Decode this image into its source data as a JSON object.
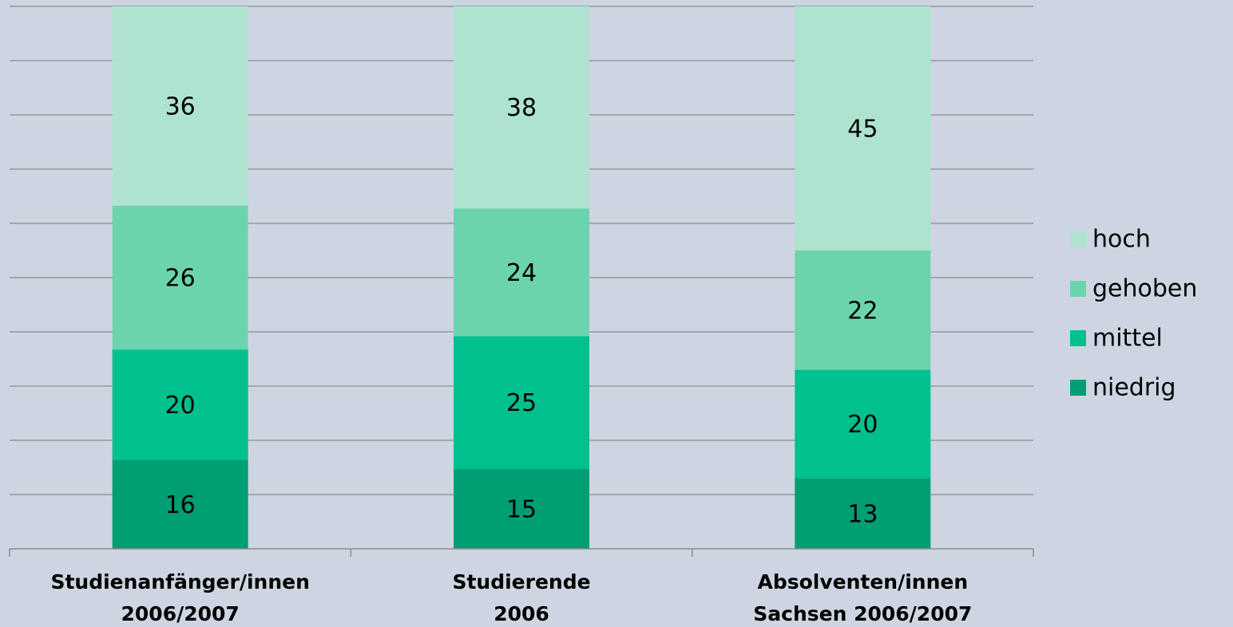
{
  "chart_data": {
    "type": "bar",
    "stacked": "percent",
    "categories": [
      [
        "Studienanfänger/innen",
        "2006/2007"
      ],
      [
        "Studierende",
        "2006"
      ],
      [
        "Absolventen/innen",
        "Sachsen 2006/2007"
      ]
    ],
    "series": [
      {
        "name": "niedrig",
        "color": "#009e73",
        "values": [
          16,
          15,
          13
        ]
      },
      {
        "name": "mittel",
        "color": "#00c08d",
        "values": [
          20,
          25,
          20
        ]
      },
      {
        "name": "gehoben",
        "color": "#6cd4ac",
        "values": [
          26,
          24,
          22
        ]
      },
      {
        "name": "hoch",
        "color": "#aee4cf",
        "values": [
          36,
          38,
          45
        ]
      }
    ],
    "ylim": [
      0,
      100
    ],
    "yticks": [
      0,
      10,
      20,
      30,
      40,
      50,
      60,
      70,
      80,
      90,
      100
    ],
    "grid": true,
    "legend": "right"
  }
}
